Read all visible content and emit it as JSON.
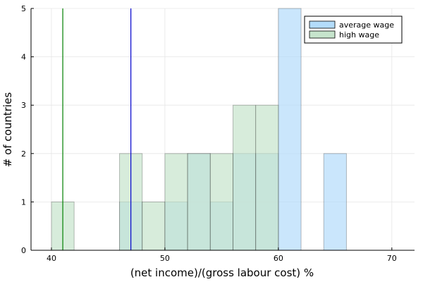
{
  "chart_data": {
    "type": "bar",
    "subtype": "overlaid-histogram",
    "xlabel": "(net income)/(gross labour cost) %",
    "ylabel": "# of countries",
    "xlim": [
      38.2,
      72
    ],
    "ylim": [
      0,
      5
    ],
    "xticks": [
      40,
      50,
      60,
      70
    ],
    "yticks": [
      0,
      1,
      2,
      3,
      4,
      5
    ],
    "grid": true,
    "legend_position": "top-right",
    "series": [
      {
        "name": "average wage",
        "color": "#b3dcfb",
        "bins": [
          {
            "x0": 46,
            "x1": 48,
            "count": 1
          },
          {
            "x0": 50,
            "x1": 52,
            "count": 1
          },
          {
            "x0": 52,
            "x1": 54,
            "count": 2
          },
          {
            "x0": 54,
            "x1": 56,
            "count": 1
          },
          {
            "x0": 56,
            "x1": 58,
            "count": 2
          },
          {
            "x0": 58,
            "x1": 60,
            "count": 2
          },
          {
            "x0": 60,
            "x1": 62,
            "count": 5
          },
          {
            "x0": 64,
            "x1": 66,
            "count": 2
          }
        ],
        "vline": 47,
        "vline_color": "#0000cc"
      },
      {
        "name": "high wage",
        "color": "#c6e4cc",
        "bins": [
          {
            "x0": 40,
            "x1": 42,
            "count": 1
          },
          {
            "x0": 46,
            "x1": 48,
            "count": 2
          },
          {
            "x0": 48,
            "x1": 50,
            "count": 1
          },
          {
            "x0": 50,
            "x1": 52,
            "count": 2
          },
          {
            "x0": 52,
            "x1": 54,
            "count": 2
          },
          {
            "x0": 54,
            "x1": 56,
            "count": 2
          },
          {
            "x0": 56,
            "x1": 58,
            "count": 3
          },
          {
            "x0": 58,
            "x1": 60,
            "count": 3
          }
        ],
        "vline": 41,
        "vline_color": "#008000"
      }
    ]
  }
}
